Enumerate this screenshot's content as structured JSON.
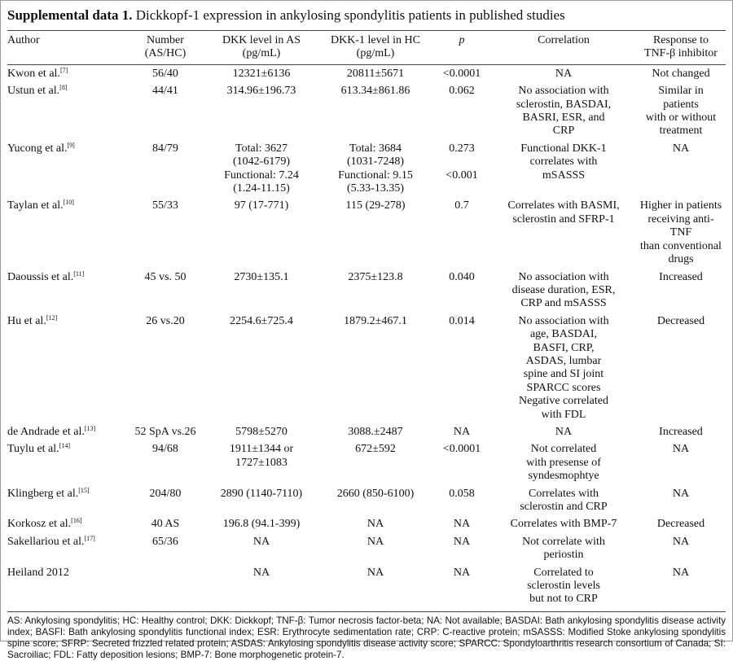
{
  "title": {
    "lead": "Supplemental data 1.",
    "text": "Dickkopf-1 expression in ankylosing spondylitis patients in published studies"
  },
  "table": {
    "headers": [
      [
        "Author"
      ],
      [
        "Number",
        "(AS/HC)"
      ],
      [
        "DKK level in AS",
        "(pg/mL)"
      ],
      [
        "DKK-1 level in HC",
        "(pg/mL)"
      ],
      [
        "p"
      ],
      [
        "Correlation"
      ],
      [
        "Response to",
        "TNF-β inhibitor"
      ]
    ],
    "rows": [
      {
        "author": "Kwon et al.",
        "ref": "[7]",
        "cells": [
          [
            "56/40"
          ],
          [
            "12321±6136"
          ],
          [
            "20811±5671"
          ],
          [
            "<0.0001"
          ],
          [
            "NA"
          ],
          [
            "Not changed"
          ]
        ]
      },
      {
        "author": "Ustun et al.",
        "ref": "[8]",
        "cells": [
          [
            "44/41"
          ],
          [
            "314.96±196.73"
          ],
          [
            "613.34±861.86"
          ],
          [
            "0.062"
          ],
          [
            "No association with",
            "sclerostin, BASDAI,",
            "BASRI, ESR, and",
            "CRP"
          ],
          [
            "Similar in",
            "patients",
            "with or without",
            "treatment"
          ]
        ]
      },
      {
        "author": "Yucong et al.",
        "ref": "[9]",
        "cells": [
          [
            "84/79"
          ],
          [
            "Total: 3627",
            "(1042-6179)",
            "Functional: 7.24",
            "(1.24-11.15)"
          ],
          [
            "Total: 3684",
            "(1031-7248)",
            "Functional: 9.15",
            "(5.33-13.35)"
          ],
          [
            "0.273",
            "<0.001"
          ],
          [
            "Functional DKK-1",
            "correlates with",
            "mSASSS"
          ],
          [
            "NA"
          ]
        ]
      },
      {
        "author": "Taylan et al.",
        "ref": "[10]",
        "cells": [
          [
            "55/33"
          ],
          [
            "97 (17-771)"
          ],
          [
            "115 (29-278)"
          ],
          [
            "0.7"
          ],
          [
            "Correlates with BASMI,",
            "sclerostin and SFRP-1"
          ],
          [
            "Higher in patients",
            "receiving anti-TNF",
            "than conventional",
            "drugs"
          ]
        ]
      },
      {
        "author": "Daoussis et al.",
        "ref": "[11]",
        "cells": [
          [
            "45 vs. 50"
          ],
          [
            "2730±135.1"
          ],
          [
            "2375±123.8"
          ],
          [
            "0.040"
          ],
          [
            "No association with",
            "disease duration, ESR,",
            "CRP and mSASSS"
          ],
          [
            "Increased"
          ]
        ]
      },
      {
        "author": "Hu et al.",
        "ref": "[12]",
        "cells": [
          [
            "26 vs.20"
          ],
          [
            "2254.6±725.4"
          ],
          [
            "1879.2±467.1"
          ],
          [
            "0.014"
          ],
          [
            "No association with",
            "age, BASDAI,",
            "BASFI, CRP,",
            "ASDAS, lumbar",
            "spine and SI joint",
            "SPARCC scores",
            "Negative correlated",
            "with FDL"
          ],
          [
            "Decreased"
          ]
        ]
      },
      {
        "author": "de Andrade et al.",
        "ref": "[13]",
        "cells": [
          [
            "52 SpA vs.26"
          ],
          [
            "5798±5270"
          ],
          [
            "3088.±2487"
          ],
          [
            "NA"
          ],
          [
            "NA"
          ],
          [
            "Increased"
          ]
        ]
      },
      {
        "author": "Tuylu et al.",
        "ref": "[14]",
        "cells": [
          [
            "94/68"
          ],
          [
            "1911±1344 or",
            "1727±1083"
          ],
          [
            "672±592"
          ],
          [
            "<0.0001"
          ],
          [
            "Not correlated",
            "with presense of",
            "syndesmophtye"
          ],
          [
            "NA"
          ]
        ]
      },
      {
        "author": "Klingberg et al.",
        "ref": "[15]",
        "cells": [
          [
            "204/80"
          ],
          [
            "2890 (1140-7110)"
          ],
          [
            "2660 (850-6100)"
          ],
          [
            "0.058"
          ],
          [
            "Correlates with",
            "sclerostin and CRP"
          ],
          [
            "NA"
          ]
        ]
      },
      {
        "author": "Korkosz et al.",
        "ref": "[16]",
        "cells": [
          [
            "40 AS"
          ],
          [
            "196.8 (94.1-399)"
          ],
          [
            "NA"
          ],
          [
            "NA"
          ],
          [
            "Correlates with BMP-7"
          ],
          [
            "Decreased"
          ]
        ]
      },
      {
        "author": "Sakellariou et al.",
        "ref": "[17]",
        "cells": [
          [
            "65/36"
          ],
          [
            "NA"
          ],
          [
            "NA"
          ],
          [
            "NA"
          ],
          [
            "Not correlate with",
            "periostin"
          ],
          [
            "NA"
          ]
        ]
      },
      {
        "author": "Heiland 2012",
        "cells": [
          null,
          [
            "NA"
          ],
          [
            "NA"
          ],
          [
            "NA"
          ],
          [
            "Correlated to",
            "sclerostin levels",
            "but not to CRP"
          ],
          [
            "NA"
          ]
        ]
      }
    ]
  },
  "footnote": "AS: Ankylosing spondylitis; HC: Healthy control; DKK: Dickkopf; TNF-β: Tumor necrosis factor-beta; NA: Not available; BASDAI: Bath ankylosing spondylitis disease activity index; BASFI: Bath ankylosing spondylitis functional index; ESR: Erythrocyte sedimentation rate; CRP: C-reactive protein; mSASSS: Modified Stoke ankylosing spondylitis spine score; SFRP: Secreted frizzled related protein; ASDAS: Ankylosing spondylitis disease activity score; SPARCC: Spondyloarthritis research consortium of Canada; SI: Sacroiliac; FDL: Fatty deposition lesions; BMP-7: Bone morphogenetic protein-7."
}
